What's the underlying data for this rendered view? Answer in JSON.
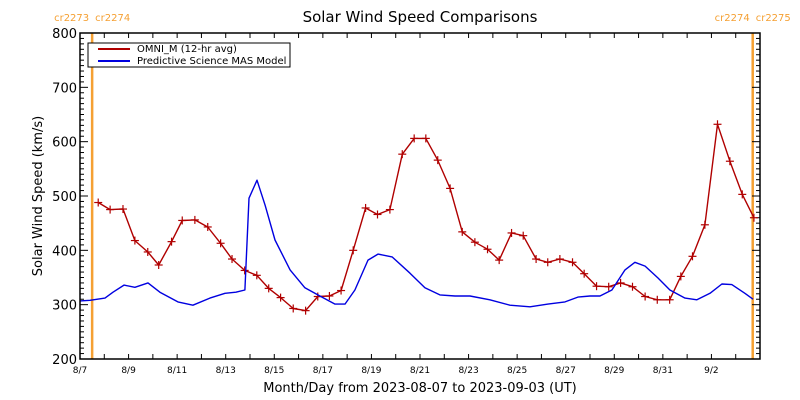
{
  "chart_data": {
    "type": "line",
    "title": "Solar Wind Speed Comparisons",
    "xlabel": "Month/Day from 2023-08-07 to 2023-09-03 (UT)",
    "ylabel": "Solar Wind Speed (km/s)",
    "ylim": [
      200,
      800
    ],
    "yticks": [
      200,
      300,
      400,
      500,
      600,
      700,
      800
    ],
    "xlim_days": [
      0,
      28
    ],
    "x_unit": "days since 2023-08-07 00:00 UT",
    "xtick_labels": [
      {
        "day": 0,
        "label": "8/7"
      },
      {
        "day": 2,
        "label": "8/9"
      },
      {
        "day": 4,
        "label": "8/11"
      },
      {
        "day": 6,
        "label": "8/13"
      },
      {
        "day": 8,
        "label": "8/15"
      },
      {
        "day": 10,
        "label": "8/17"
      },
      {
        "day": 12,
        "label": "8/19"
      },
      {
        "day": 14,
        "label": "8/21"
      },
      {
        "day": 16,
        "label": "8/23"
      },
      {
        "day": 18,
        "label": "8/25"
      },
      {
        "day": 20,
        "label": "8/27"
      },
      {
        "day": 22,
        "label": "8/29"
      },
      {
        "day": 24,
        "label": "8/31"
      },
      {
        "day": 26,
        "label": "9/2"
      }
    ],
    "grid": false,
    "legend_position": "top-left",
    "carrington_markers": [
      {
        "day": 0.5,
        "left_label": "cr2273",
        "right_label": "cr2274",
        "color": "#f5a033"
      },
      {
        "day": 27.7,
        "left_label": "cr2274",
        "right_label": "cr2275",
        "color": "#f5a033"
      }
    ],
    "series": [
      {
        "name": "OMNI_M (12-hr avg)",
        "color": "#b00000",
        "marker": "plus",
        "x": [
          0.75,
          1.24,
          1.77,
          2.26,
          2.79,
          3.24,
          3.77,
          4.21,
          4.73,
          5.26,
          5.79,
          6.26,
          6.78,
          7.28,
          7.77,
          8.26,
          8.78,
          9.29,
          9.79,
          10.27,
          10.75,
          11.25,
          11.76,
          12.25,
          12.76,
          13.27,
          13.76,
          14.24,
          14.73,
          15.24,
          15.74,
          16.26,
          16.78,
          17.26,
          17.77,
          18.25,
          18.78,
          19.26,
          19.76,
          20.28,
          20.76,
          21.27,
          21.77,
          22.26,
          22.75,
          23.27,
          23.77,
          24.28,
          24.74,
          25.22,
          25.73,
          26.25,
          26.76,
          27.27,
          27.75
        ],
        "values": [
          488,
          475,
          476,
          418,
          397,
          373,
          416,
          455,
          456,
          443,
          413,
          384,
          363,
          354,
          330,
          313,
          293,
          289,
          315,
          316,
          326,
          400,
          478,
          466,
          475,
          577,
          606,
          606,
          566,
          514,
          434,
          415,
          402,
          382,
          432,
          427,
          384,
          378,
          384,
          378,
          357,
          334,
          333,
          340,
          333,
          315,
          309,
          309,
          352,
          389,
          447,
          632,
          564,
          503,
          460
        ]
      },
      {
        "name": "Predictive Science MAS Model",
        "color": "#0000e0",
        "marker": "none",
        "x": [
          0,
          0.41,
          1.03,
          1.36,
          1.81,
          2.26,
          2.8,
          3.29,
          4.03,
          4.65,
          5.35,
          5.97,
          6.42,
          6.79,
          6.96,
          7.29,
          7.62,
          8.03,
          8.65,
          9.26,
          9.88,
          10.5,
          10.91,
          11.32,
          11.86,
          12.27,
          12.85,
          13.59,
          14.2,
          14.82,
          15.44,
          16.06,
          16.88,
          17.7,
          18.53,
          19.27,
          19.97,
          20.5,
          21.0,
          21.41,
          21.9,
          22.44,
          22.85,
          23.27,
          23.8,
          24.29,
          24.91,
          25.4,
          25.94,
          26.43,
          26.84,
          27.38,
          27.71
        ],
        "values": [
          307,
          308,
          312,
          323,
          336,
          332,
          340,
          323,
          305,
          299,
          312,
          321,
          323,
          327,
          496,
          529,
          483,
          419,
          364,
          331,
          316,
          301,
          301,
          327,
          382,
          393,
          388,
          358,
          331,
          318,
          316,
          316,
          309,
          299,
          296,
          301,
          305,
          314,
          316,
          316,
          327,
          364,
          378,
          371,
          349,
          327,
          312,
          309,
          321,
          338,
          337,
          321,
          310
        ]
      }
    ]
  }
}
